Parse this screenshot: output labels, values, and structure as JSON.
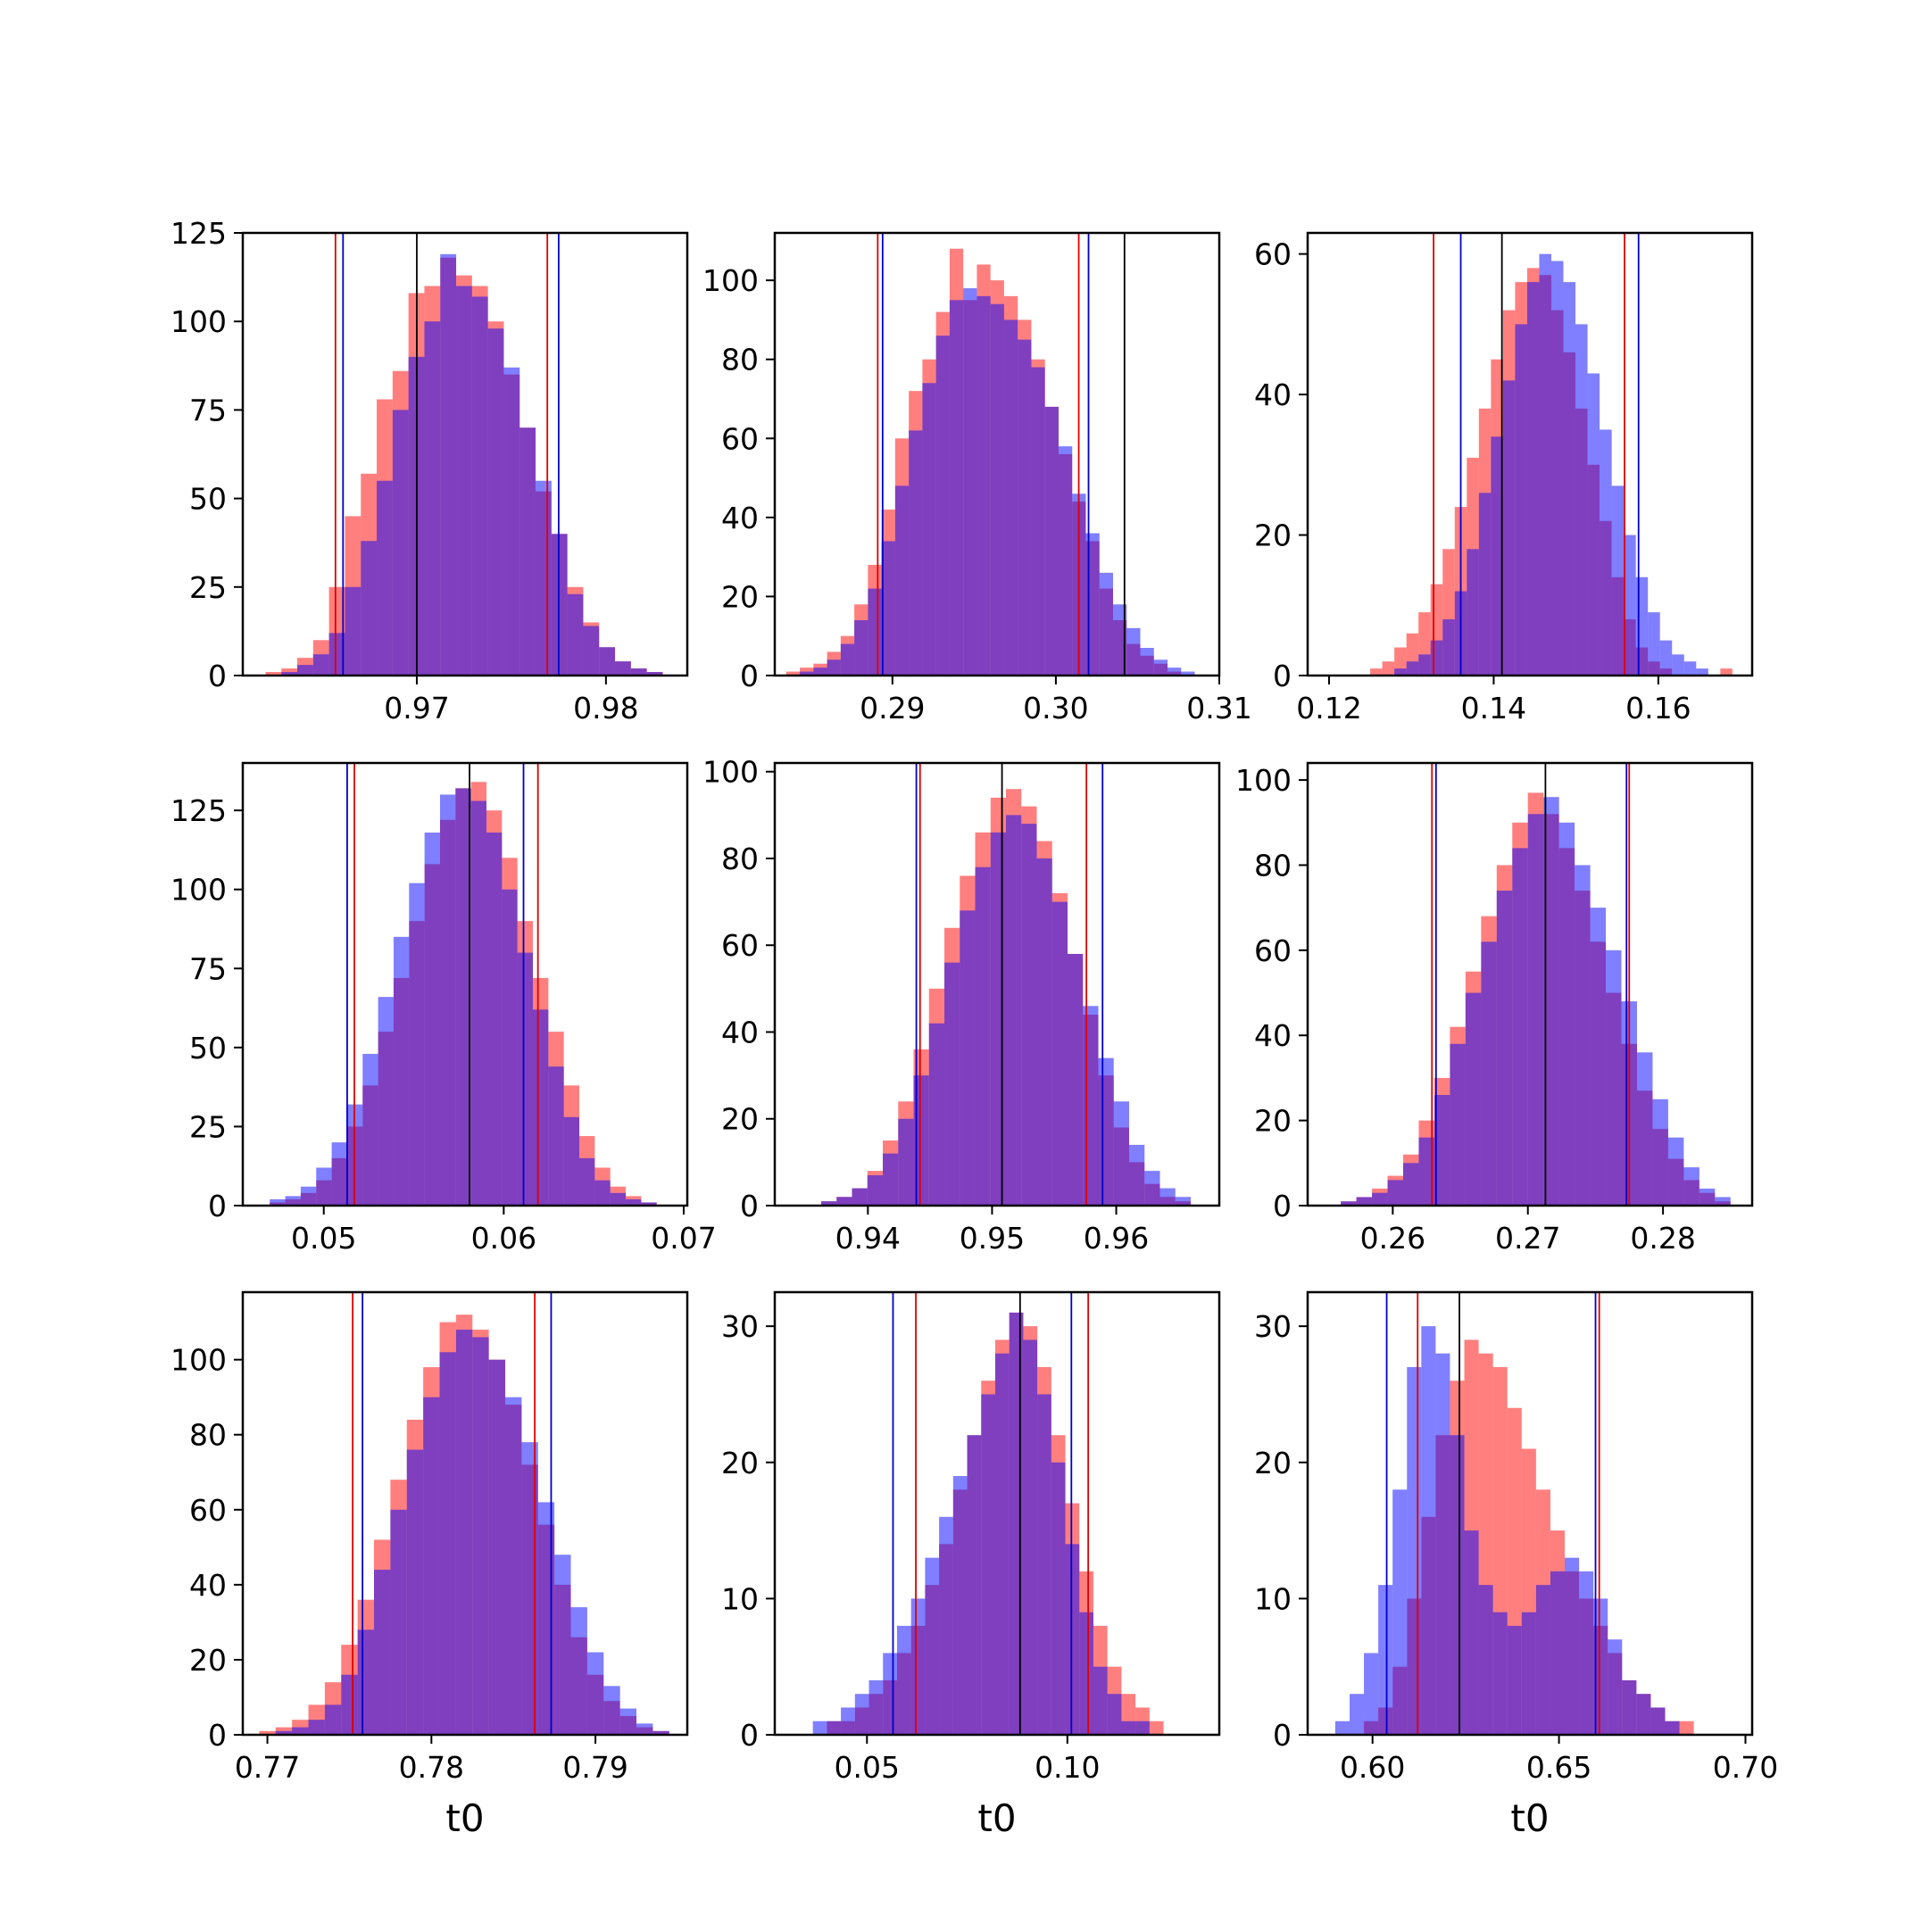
{
  "figure": {
    "hist_colors": {
      "red": "#ff0000",
      "blue": "#0000ff"
    },
    "hist_opacity": 0.5,
    "line_colors": {
      "red": "#e00000",
      "blue": "#0000cc",
      "black": "#000000"
    }
  },
  "chart_data": [
    {
      "type": "histogram",
      "panel": "row1-col1",
      "xlabel": "",
      "xlim": [
        0.9608,
        0.9843
      ],
      "ylim": [
        0,
        125
      ],
      "xticks": [
        0.97,
        0.98
      ],
      "xtick_labels": [
        "0.97",
        "0.98"
      ],
      "yticks": [
        0,
        25,
        50,
        75,
        100,
        125
      ],
      "ytick_labels": [
        "0",
        "25",
        "50",
        "75",
        "100",
        "125"
      ],
      "series": [
        {
          "color": "red",
          "x_range": [
            0.962,
            0.983
          ],
          "values": [
            1,
            2,
            5,
            10,
            25,
            45,
            57,
            78,
            86,
            108,
            110,
            118,
            113,
            110,
            100,
            85,
            70,
            52,
            40,
            25,
            15,
            8,
            4,
            2,
            1
          ]
        },
        {
          "color": "blue",
          "x_range": [
            0.962,
            0.983
          ],
          "values": [
            0,
            1,
            3,
            6,
            12,
            25,
            38,
            55,
            75,
            90,
            100,
            119,
            110,
            107,
            98,
            87,
            70,
            55,
            40,
            23,
            14,
            8,
            4,
            2,
            1
          ]
        }
      ],
      "vlines": [
        {
          "color": "red",
          "x": 0.9657
        },
        {
          "color": "blue",
          "x": 0.9661
        },
        {
          "color": "black",
          "x": 0.97
        },
        {
          "color": "red",
          "x": 0.9769
        },
        {
          "color": "blue",
          "x": 0.9775
        }
      ]
    },
    {
      "type": "histogram",
      "panel": "row1-col2",
      "xlabel": "",
      "xlim": [
        0.2828,
        0.31
      ],
      "ylim": [
        0,
        112
      ],
      "xticks": [
        0.29,
        0.3,
        0.31
      ],
      "xtick_labels": [
        "0.29",
        "0.30",
        "0.31"
      ],
      "yticks": [
        0,
        20,
        40,
        60,
        80,
        100
      ],
      "ytick_labels": [
        "0",
        "20",
        "40",
        "60",
        "80",
        "100"
      ],
      "series": [
        {
          "color": "red",
          "x_range": [
            0.2835,
            0.3085
          ],
          "values": [
            1,
            2,
            3,
            6,
            10,
            18,
            28,
            42,
            60,
            72,
            80,
            92,
            108,
            95,
            104,
            100,
            96,
            90,
            80,
            68,
            56,
            44,
            34,
            22,
            14,
            8,
            5,
            3,
            1,
            0
          ]
        },
        {
          "color": "blue",
          "x_range": [
            0.2835,
            0.3085
          ],
          "values": [
            0,
            1,
            2,
            4,
            8,
            14,
            22,
            34,
            48,
            62,
            74,
            86,
            95,
            98,
            96,
            94,
            90,
            85,
            78,
            68,
            58,
            46,
            36,
            26,
            18,
            12,
            7,
            4,
            2,
            1
          ]
        }
      ],
      "vlines": [
        {
          "color": "red",
          "x": 0.2891
        },
        {
          "color": "blue",
          "x": 0.2894
        },
        {
          "color": "red",
          "x": 0.3014
        },
        {
          "color": "blue",
          "x": 0.302
        },
        {
          "color": "black",
          "x": 0.3042
        }
      ]
    },
    {
      "type": "histogram",
      "panel": "row1-col3",
      "xlabel": "",
      "xlim": [
        0.1174,
        0.1714
      ],
      "ylim": [
        0,
        63
      ],
      "xticks": [
        0.12,
        0.14,
        0.16
      ],
      "xtick_labels": [
        "0.12",
        "0.14",
        "0.16"
      ],
      "yticks": [
        0,
        20,
        40,
        60
      ],
      "ytick_labels": [
        "0",
        "20",
        "40",
        "60"
      ],
      "series": [
        {
          "color": "red",
          "x_range": [
            0.125,
            0.169
          ],
          "values": [
            1,
            2,
            4,
            6,
            9,
            13,
            18,
            24,
            31,
            38,
            45,
            52,
            56,
            58,
            57,
            52,
            46,
            38,
            30,
            22,
            14,
            8,
            4,
            2,
            1,
            0,
            0,
            0,
            0,
            1
          ]
        },
        {
          "color": "blue",
          "x_range": [
            0.125,
            0.169
          ],
          "values": [
            0,
            0,
            1,
            2,
            3,
            5,
            8,
            12,
            18,
            26,
            34,
            42,
            50,
            56,
            60,
            59,
            56,
            50,
            43,
            35,
            27,
            20,
            14,
            9,
            5,
            3,
            2,
            1,
            0,
            0
          ]
        }
      ],
      "vlines": [
        {
          "color": "red",
          "x": 0.1327
        },
        {
          "color": "blue",
          "x": 0.136
        },
        {
          "color": "black",
          "x": 0.141
        },
        {
          "color": "red",
          "x": 0.1559
        },
        {
          "color": "blue",
          "x": 0.1576
        }
      ]
    },
    {
      "type": "histogram",
      "panel": "row2-col1",
      "xlabel": "",
      "xlim": [
        0.0455,
        0.0702
      ],
      "ylim": [
        0,
        140
      ],
      "xticks": [
        0.05,
        0.06,
        0.07
      ],
      "xtick_labels": [
        "0.05",
        "0.06",
        "0.07"
      ],
      "yticks": [
        0,
        25,
        50,
        75,
        100,
        125
      ],
      "ytick_labels": [
        "0",
        "25",
        "50",
        "75",
        "100",
        "125"
      ],
      "series": [
        {
          "color": "red",
          "x_range": [
            0.047,
            0.0685
          ],
          "values": [
            1,
            2,
            4,
            8,
            15,
            25,
            38,
            55,
            72,
            90,
            108,
            122,
            132,
            134,
            125,
            110,
            90,
            72,
            55,
            38,
            22,
            12,
            6,
            3,
            1
          ]
        },
        {
          "color": "blue",
          "x_range": [
            0.047,
            0.0685
          ],
          "values": [
            2,
            3,
            6,
            12,
            20,
            32,
            48,
            66,
            85,
            102,
            118,
            130,
            132,
            128,
            118,
            100,
            80,
            62,
            44,
            28,
            15,
            8,
            4,
            2,
            1
          ]
        }
      ],
      "vlines": [
        {
          "color": "blue",
          "x": 0.0513
        },
        {
          "color": "red",
          "x": 0.0517
        },
        {
          "color": "black",
          "x": 0.0581
        },
        {
          "color": "blue",
          "x": 0.0611
        },
        {
          "color": "red",
          "x": 0.0619
        }
      ]
    },
    {
      "type": "histogram",
      "panel": "row2-col2",
      "xlabel": "",
      "xlim": [
        0.9325,
        0.9683
      ],
      "ylim": [
        0,
        102
      ],
      "xticks": [
        0.94,
        0.95,
        0.96
      ],
      "xtick_labels": [
        "0.94",
        "0.95",
        "0.96"
      ],
      "yticks": [
        0,
        20,
        40,
        60,
        80,
        100
      ],
      "ytick_labels": [
        "0",
        "20",
        "40",
        "60",
        "80",
        "100"
      ],
      "series": [
        {
          "color": "red",
          "x_range": [
            0.935,
            0.966
          ],
          "values": [
            0,
            1,
            2,
            4,
            8,
            15,
            24,
            36,
            50,
            64,
            76,
            86,
            94,
            96,
            92,
            84,
            72,
            58,
            44,
            30,
            18,
            10,
            5,
            2,
            1
          ]
        },
        {
          "color": "blue",
          "x_range": [
            0.935,
            0.966
          ],
          "values": [
            0,
            1,
            2,
            4,
            7,
            12,
            20,
            30,
            42,
            56,
            68,
            78,
            86,
            90,
            88,
            80,
            70,
            58,
            46,
            34,
            24,
            14,
            8,
            4,
            2
          ]
        }
      ],
      "vlines": [
        {
          "color": "blue",
          "x": 0.9439
        },
        {
          "color": "red",
          "x": 0.9442
        },
        {
          "color": "black",
          "x": 0.9508
        },
        {
          "color": "red",
          "x": 0.9576
        },
        {
          "color": "blue",
          "x": 0.9589
        }
      ]
    },
    {
      "type": "histogram",
      "panel": "row2-col3",
      "xlabel": "",
      "xlim": [
        0.2537,
        0.2866
      ],
      "ylim": [
        0,
        104
      ],
      "xticks": [
        0.26,
        0.27,
        0.28
      ],
      "xtick_labels": [
        "0.26",
        "0.27",
        "0.28"
      ],
      "yticks": [
        0,
        20,
        40,
        60,
        80,
        100
      ],
      "ytick_labels": [
        "0",
        "20",
        "40",
        "60",
        "80",
        "100"
      ],
      "series": [
        {
          "color": "red",
          "x_range": [
            0.255,
            0.285
          ],
          "values": [
            0,
            1,
            2,
            4,
            7,
            12,
            20,
            30,
            42,
            55,
            68,
            80,
            90,
            97,
            92,
            84,
            74,
            62,
            50,
            38,
            27,
            18,
            11,
            6,
            3,
            1
          ]
        },
        {
          "color": "blue",
          "x_range": [
            0.255,
            0.285
          ],
          "values": [
            0,
            1,
            2,
            3,
            6,
            10,
            16,
            26,
            38,
            50,
            62,
            74,
            84,
            92,
            96,
            90,
            80,
            70,
            60,
            48,
            36,
            25,
            16,
            9,
            4,
            2
          ]
        }
      ],
      "vlines": [
        {
          "color": "red",
          "x": 0.2629
        },
        {
          "color": "blue",
          "x": 0.2632
        },
        {
          "color": "black",
          "x": 0.2713
        },
        {
          "color": "blue",
          "x": 0.2773
        },
        {
          "color": "red",
          "x": 0.2775
        }
      ]
    },
    {
      "type": "histogram",
      "panel": "row3-col1",
      "xlabel": "t0",
      "xlim": [
        0.7685,
        0.7956
      ],
      "ylim": [
        0,
        118
      ],
      "xticks": [
        0.77,
        0.78,
        0.79
      ],
      "xtick_labels": [
        "0.77",
        "0.78",
        "0.79"
      ],
      "yticks": [
        0,
        20,
        40,
        60,
        80,
        100
      ],
      "ytick_labels": [
        "0",
        "20",
        "40",
        "60",
        "80",
        "100"
      ],
      "series": [
        {
          "color": "red",
          "x_range": [
            0.7695,
            0.7945
          ],
          "values": [
            1,
            2,
            4,
            8,
            14,
            24,
            36,
            52,
            68,
            84,
            98,
            110,
            112,
            108,
            100,
            88,
            72,
            56,
            40,
            26,
            16,
            9,
            5,
            2,
            1
          ]
        },
        {
          "color": "blue",
          "x_range": [
            0.7695,
            0.7945
          ],
          "values": [
            0,
            1,
            2,
            4,
            8,
            16,
            28,
            44,
            60,
            76,
            90,
            102,
            108,
            106,
            100,
            90,
            78,
            62,
            48,
            34,
            22,
            13,
            7,
            3,
            1
          ]
        }
      ],
      "vlines": [
        {
          "color": "red",
          "x": 0.7752
        },
        {
          "color": "blue",
          "x": 0.7758
        },
        {
          "color": "red",
          "x": 0.7863
        },
        {
          "color": "blue",
          "x": 0.7873
        }
      ]
    },
    {
      "type": "histogram",
      "panel": "row3-col2",
      "xlabel": "t0",
      "xlim": [
        0.027,
        0.1379
      ],
      "ylim": [
        0,
        32.5
      ],
      "xticks": [
        0.05,
        0.1
      ],
      "xtick_labels": [
        "0.05",
        "0.10"
      ],
      "yticks": [
        0,
        10,
        20,
        30
      ],
      "ytick_labels": [
        "0",
        "10",
        "20",
        "30"
      ],
      "series": [
        {
          "color": "red",
          "x_range": [
            0.033,
            0.131
          ],
          "values": [
            0,
            0,
            1,
            1,
            2,
            3,
            4,
            6,
            8,
            11,
            14,
            18,
            22,
            26,
            29,
            31,
            30,
            27,
            22,
            17,
            12,
            8,
            5,
            3,
            2,
            1,
            0,
            0
          ]
        },
        {
          "color": "blue",
          "x_range": [
            0.033,
            0.131
          ],
          "values": [
            0,
            1,
            1,
            2,
            3,
            4,
            6,
            8,
            10,
            13,
            16,
            19,
            22,
            25,
            28,
            31,
            29,
            25,
            20,
            14,
            9,
            5,
            3,
            1,
            1,
            0,
            0,
            0
          ]
        }
      ],
      "vlines": [
        {
          "color": "blue",
          "x": 0.0565
        },
        {
          "color": "red",
          "x": 0.0622
        },
        {
          "color": "black",
          "x": 0.0882
        },
        {
          "color": "blue",
          "x": 0.101
        },
        {
          "color": "red",
          "x": 0.1052
        }
      ]
    },
    {
      "type": "histogram",
      "panel": "row3-col3",
      "xlabel": "t0",
      "xlim": [
        0.5826,
        0.7018
      ],
      "ylim": [
        0,
        32.5
      ],
      "xticks": [
        0.6,
        0.65,
        0.7
      ],
      "xtick_labels": [
        "0.60",
        "0.65",
        "0.70"
      ],
      "yticks": [
        0,
        10,
        20,
        30
      ],
      "ytick_labels": [
        "0",
        "10",
        "20",
        "30"
      ],
      "series": [
        {
          "color": "red",
          "x_range": [
            0.59,
            0.69
          ],
          "values": [
            0,
            0,
            1,
            2,
            5,
            10,
            16,
            22,
            26,
            29,
            28,
            27,
            24,
            21,
            18,
            15,
            12,
            10,
            8,
            6,
            4,
            3,
            2,
            1,
            1,
            0
          ]
        },
        {
          "color": "blue",
          "x_range": [
            0.59,
            0.69
          ],
          "values": [
            1,
            3,
            6,
            11,
            18,
            27,
            30,
            28,
            22,
            15,
            11,
            9,
            8,
            9,
            11,
            12,
            13,
            12,
            10,
            7,
            4,
            3,
            2,
            1,
            0,
            0
          ]
        }
      ],
      "vlines": [
        {
          "color": "blue",
          "x": 0.6038
        },
        {
          "color": "red",
          "x": 0.6121
        },
        {
          "color": "black",
          "x": 0.6233
        },
        {
          "color": "blue",
          "x": 0.6598
        },
        {
          "color": "red",
          "x": 0.6608
        }
      ]
    }
  ]
}
